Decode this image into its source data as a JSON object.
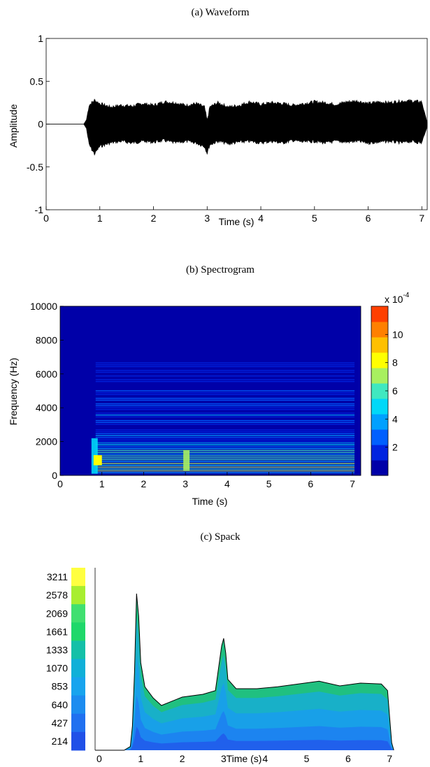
{
  "chart_data": [
    {
      "type": "line",
      "title": "(a) Waveform",
      "xlabel": "Time (s)",
      "ylabel": "Amplitude",
      "xlim": [
        0,
        7.1
      ],
      "ylim": [
        -1,
        1
      ],
      "xticks": [
        "0",
        "1",
        "2",
        "3",
        "4",
        "5",
        "6",
        "7"
      ],
      "yticks": [
        "1",
        "0.5",
        "0",
        "-0.5",
        "-1"
      ],
      "envelope": {
        "t": [
          0,
          0.7,
          0.75,
          0.8,
          0.9,
          1.0,
          1.2,
          1.4,
          1.6,
          1.8,
          2.0,
          2.2,
          2.4,
          2.6,
          2.8,
          2.95,
          3.0,
          3.05,
          3.2,
          3.4,
          3.6,
          3.8,
          4.0,
          4.2,
          4.4,
          4.6,
          4.8,
          5.0,
          5.2,
          5.4,
          5.6,
          5.8,
          6.0,
          6.2,
          6.4,
          6.6,
          6.8,
          7.0,
          7.1
        ],
        "upper": [
          0,
          0,
          0.05,
          0.22,
          0.28,
          0.24,
          0.2,
          0.22,
          0.21,
          0.24,
          0.22,
          0.26,
          0.25,
          0.22,
          0.24,
          0.2,
          0.04,
          0.2,
          0.25,
          0.2,
          0.22,
          0.26,
          0.23,
          0.25,
          0.24,
          0.22,
          0.24,
          0.26,
          0.25,
          0.23,
          0.26,
          0.27,
          0.24,
          0.26,
          0.25,
          0.27,
          0.27,
          0.26,
          0.02
        ],
        "lower": [
          0,
          0,
          -0.05,
          -0.24,
          -0.35,
          -0.26,
          -0.22,
          -0.2,
          -0.22,
          -0.2,
          -0.21,
          -0.19,
          -0.22,
          -0.2,
          -0.22,
          -0.26,
          -0.34,
          -0.24,
          -0.2,
          -0.23,
          -0.21,
          -0.2,
          -0.22,
          -0.2,
          -0.22,
          -0.19,
          -0.21,
          -0.2,
          -0.22,
          -0.2,
          -0.21,
          -0.2,
          -0.22,
          -0.21,
          -0.2,
          -0.22,
          -0.2,
          -0.22,
          -0.03
        ]
      }
    },
    {
      "type": "heatmap",
      "title": "(b) Spectrogram",
      "xlabel": "Time (s)",
      "ylabel": "Frequency (Hz)",
      "xlim": [
        0,
        7.2
      ],
      "ylim": [
        0,
        10000
      ],
      "xticks": [
        "0",
        "1",
        "2",
        "3",
        "4",
        "5",
        "6",
        "7"
      ],
      "yticks": [
        "10000",
        "8000",
        "6000",
        "4000",
        "2000",
        "0"
      ],
      "signal_extent_s": [
        0.75,
        7.05
      ],
      "colorbar": {
        "exponent_label": "x 10",
        "exponent": "-4",
        "ticks": [
          "10",
          "8",
          "6",
          "4",
          "2"
        ],
        "range": [
          0,
          12
        ],
        "colors": [
          "#0000a8",
          "#0024e0",
          "#0060ff",
          "#00a0ff",
          "#00d8f8",
          "#40e8c0",
          "#a8f060",
          "#ffff00",
          "#ffc000",
          "#ff8000",
          "#ff4000"
        ]
      }
    },
    {
      "type": "area",
      "title": "(c) Spack",
      "xlabel": "Time (s)",
      "xlim": [
        -0.1,
        7.35
      ],
      "xticks": [
        "0",
        "1",
        "2",
        "3",
        "4",
        "5",
        "6",
        "7"
      ],
      "legend_levels": [
        "3211",
        "2578",
        "2069",
        "1661",
        "1333",
        "1070",
        "853",
        "640",
        "427",
        "214"
      ],
      "legend_colors": [
        "#ffff40",
        "#a8ee30",
        "#40e070",
        "#1fd86a",
        "#14c0a8",
        "#10b0d8",
        "#18a4ee",
        "#1c8cf0",
        "#2070f0",
        "#2050e8"
      ],
      "profile": {
        "t": [
          -0.1,
          0.6,
          0.75,
          0.8,
          0.85,
          0.9,
          0.95,
          1.0,
          1.1,
          1.3,
          1.5,
          2.0,
          2.5,
          2.8,
          2.95,
          3.0,
          3.05,
          3.1,
          3.3,
          3.8,
          4.3,
          4.8,
          5.3,
          5.8,
          6.3,
          6.8,
          6.95,
          7.0,
          7.05,
          7.1
        ],
        "y": [
          0,
          0,
          20,
          130,
          420,
          840,
          720,
          470,
          340,
          280,
          240,
          285,
          300,
          320,
          560,
          600,
          520,
          380,
          330,
          330,
          340,
          355,
          370,
          345,
          360,
          355,
          320,
          180,
          40,
          0
        ]
      }
    }
  ]
}
